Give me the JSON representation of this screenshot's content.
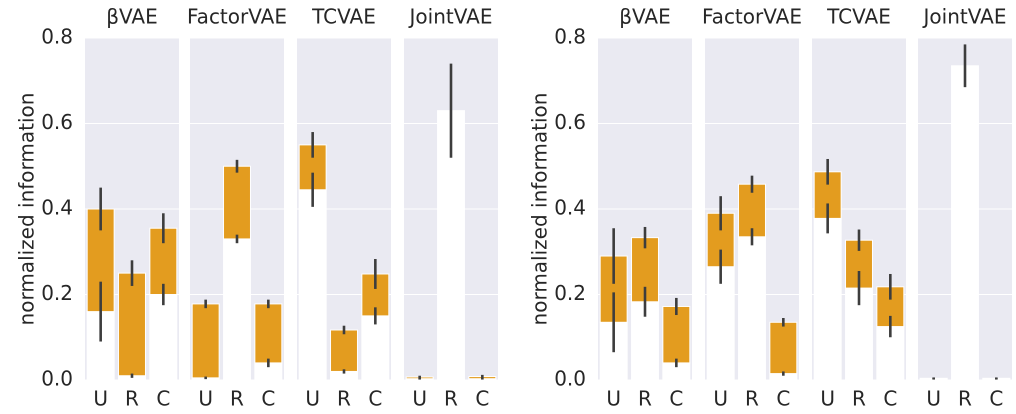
{
  "chart_data": [
    {
      "type": "bar",
      "ylabel": "normalized information",
      "ylim": [
        0,
        0.8
      ],
      "yticks": [
        {
          "value": 0,
          "label": "0.0"
        },
        0.2,
        0.4,
        0.6,
        0.8
      ],
      "panels": [
        {
          "title": "βVAE",
          "categories": [
            "U",
            "R",
            "C"
          ],
          "series": [
            {
              "color": "#ffffff",
              "values": [
                0.16,
                0.01,
                0.2
              ],
              "errors": [
                0.07,
                0.005,
                0.025
              ]
            },
            {
              "color": "#e39c1f",
              "values": [
                0.24,
                0.24,
                0.155
              ],
              "errors": [
                0.05,
                0.03,
                0.035
              ]
            }
          ]
        },
        {
          "title": "FactorVAE",
          "categories": [
            "U",
            "R",
            "C"
          ],
          "series": [
            {
              "color": "#ffffff",
              "values": [
                0.005,
                0.33,
                0.04
              ],
              "errors": [
                0.003,
                0.01,
                0.01
              ]
            },
            {
              "color": "#e39c1f",
              "values": [
                0.173,
                0.17,
                0.138
              ],
              "errors": [
                0.01,
                0.015,
                0.01
              ]
            }
          ]
        },
        {
          "title": "TCVAE",
          "categories": [
            "U",
            "R",
            "C"
          ],
          "series": [
            {
              "color": "#ffffff",
              "values": [
                0.445,
                0.02,
                0.15
              ],
              "errors": [
                0.04,
                0.005,
                0.02
              ]
            },
            {
              "color": "#e39c1f",
              "values": [
                0.105,
                0.097,
                0.098
              ],
              "errors": [
                0.03,
                0.01,
                0.035
              ]
            }
          ]
        },
        {
          "title": "JointVAE",
          "categories": [
            "U",
            "R",
            "C"
          ],
          "series": [
            {
              "color": "#ffffff",
              "values": [
                0.003,
                0.63,
                0.003
              ],
              "errors": [
                0.002,
                0.11,
                0.002
              ]
            },
            {
              "color": "#e39c1f",
              "values": [
                0.004,
                0,
                0.005
              ],
              "errors": [
                0.003,
                0,
                0.004
              ]
            }
          ]
        }
      ]
    },
    {
      "type": "bar",
      "ylabel": "normalized information",
      "ylim": [
        0,
        0.8
      ],
      "yticks": [
        {
          "value": 0,
          "label": "0.0"
        },
        0.2,
        0.4,
        0.6,
        0.8
      ],
      "panels": [
        {
          "title": "βVAE",
          "categories": [
            "U",
            "R",
            "C"
          ],
          "series": [
            {
              "color": "#ffffff",
              "values": [
                0.135,
                0.183,
                0.04
              ],
              "errors": [
                0.07,
                0.035,
                0.01
              ]
            },
            {
              "color": "#e39c1f",
              "values": [
                0.155,
                0.15,
                0.132
              ],
              "errors": [
                0.065,
                0.025,
                0.02
              ]
            }
          ]
        },
        {
          "title": "FactorVAE",
          "categories": [
            "U",
            "R",
            "C"
          ],
          "series": [
            {
              "color": "#ffffff",
              "values": [
                0.265,
                0.335,
                0.015
              ],
              "errors": [
                0.04,
                0.02,
                0.005
              ]
            },
            {
              "color": "#e39c1f",
              "values": [
                0.125,
                0.123,
                0.12
              ],
              "errors": [
                0.04,
                0.02,
                0.01
              ]
            }
          ]
        },
        {
          "title": "TCVAE",
          "categories": [
            "U",
            "R",
            "C"
          ],
          "series": [
            {
              "color": "#ffffff",
              "values": [
                0.378,
                0.215,
                0.125
              ],
              "errors": [
                0.035,
                0.04,
                0.025
              ]
            },
            {
              "color": "#e39c1f",
              "values": [
                0.109,
                0.112,
                0.093
              ],
              "errors": [
                0.03,
                0.025,
                0.03
              ]
            }
          ]
        },
        {
          "title": "JointVAE",
          "categories": [
            "U",
            "R",
            "C"
          ],
          "series": [
            {
              "color": "#ffffff",
              "values": [
                0.003,
                0.735,
                0.003
              ],
              "errors": [
                0.002,
                0.05,
                0.002
              ]
            },
            {
              "color": "#e39c1f",
              "values": [
                0.001,
                0,
                0.001
              ],
              "errors": [
                0.002,
                0,
                0.002
              ]
            }
          ]
        }
      ]
    }
  ]
}
